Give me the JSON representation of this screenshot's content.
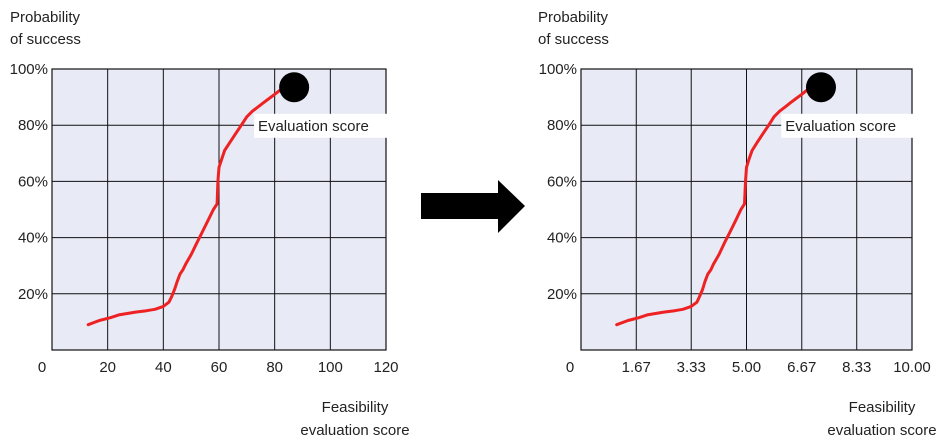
{
  "arrow_color": "#000000",
  "chart_data": [
    {
      "type": "line",
      "ylabel_lines": [
        "Probability",
        "of success"
      ],
      "xlabel_lines": [
        "Feasibility",
        "evaluation score"
      ],
      "x_origin_label": "0",
      "x_ticks": [
        20,
        40,
        60,
        80,
        100,
        120
      ],
      "x_tick_labels": [
        "20",
        "40",
        "60",
        "80",
        "100",
        "120"
      ],
      "xlim": [
        0,
        120
      ],
      "y_ticks": [
        20,
        40,
        60,
        80,
        100
      ],
      "y_tick_labels": [
        "20%",
        "40%",
        "60%",
        "80%",
        "100%"
      ],
      "ylim": [
        0,
        100
      ],
      "grid": true,
      "background_color": "#e8eaf6",
      "series": [
        {
          "color": "#ee2222",
          "x": [
            13,
            17,
            21,
            24,
            27,
            30,
            34,
            37,
            40,
            42,
            43,
            44,
            45,
            46,
            47,
            48,
            50,
            52,
            54,
            56,
            58,
            59.3,
            59.6,
            60,
            61,
            62,
            64,
            66,
            68,
            70,
            72,
            74,
            76,
            78,
            80,
            82
          ],
          "y": [
            9,
            10.5,
            11.5,
            12.5,
            13,
            13.5,
            14,
            14.5,
            15.5,
            17,
            19,
            21.5,
            24.5,
            27,
            28.5,
            30.5,
            34,
            38,
            42,
            46,
            50,
            52,
            60,
            65,
            68,
            71,
            74,
            77,
            80,
            83,
            85,
            86.5,
            88,
            89.5,
            91,
            92.5
          ]
        }
      ],
      "marker": {
        "x": 87,
        "y": 93.5,
        "color": "#000000"
      },
      "annotation": {
        "text": "Evaluation score",
        "x": 74,
        "y": 80.5
      }
    },
    {
      "type": "line",
      "ylabel_lines": [
        "Probability",
        "of success"
      ],
      "xlabel_lines": [
        "Feasibility",
        "evaluation score"
      ],
      "x_origin_label": "0",
      "x_ticks": [
        1.67,
        3.33,
        5.0,
        6.67,
        8.33,
        10.0
      ],
      "x_tick_labels": [
        "1.67",
        "3.33",
        "5.00",
        "6.67",
        "8.33",
        "10.00"
      ],
      "xlim": [
        0,
        10
      ],
      "y_ticks": [
        20,
        40,
        60,
        80,
        100
      ],
      "y_tick_labels": [
        "20%",
        "40%",
        "60%",
        "80%",
        "100%"
      ],
      "ylim": [
        0,
        100
      ],
      "grid": true,
      "background_color": "#e8eaf6",
      "series": [
        {
          "color": "#ee2222",
          "x": [
            1.08,
            1.42,
            1.75,
            2.0,
            2.25,
            2.5,
            2.83,
            3.08,
            3.33,
            3.5,
            3.58,
            3.67,
            3.75,
            3.83,
            3.92,
            4.0,
            4.17,
            4.33,
            4.5,
            4.67,
            4.83,
            4.94,
            4.97,
            5.0,
            5.08,
            5.17,
            5.33,
            5.5,
            5.67,
            5.83,
            6.0,
            6.17,
            6.33,
            6.5,
            6.67,
            6.83
          ],
          "y": [
            9,
            10.5,
            11.5,
            12.5,
            13,
            13.5,
            14,
            14.5,
            15.5,
            17,
            19,
            21.5,
            24.5,
            27,
            28.5,
            30.5,
            34,
            38,
            42,
            46,
            50,
            52,
            60,
            65,
            68,
            71,
            74,
            77,
            80,
            83,
            85,
            86.5,
            88,
            89.5,
            91,
            92.5
          ]
        }
      ],
      "marker": {
        "x": 7.25,
        "y": 93.5,
        "color": "#000000"
      },
      "annotation": {
        "text": "Evaluation score",
        "x": 6.17,
        "y": 80.5
      }
    }
  ]
}
